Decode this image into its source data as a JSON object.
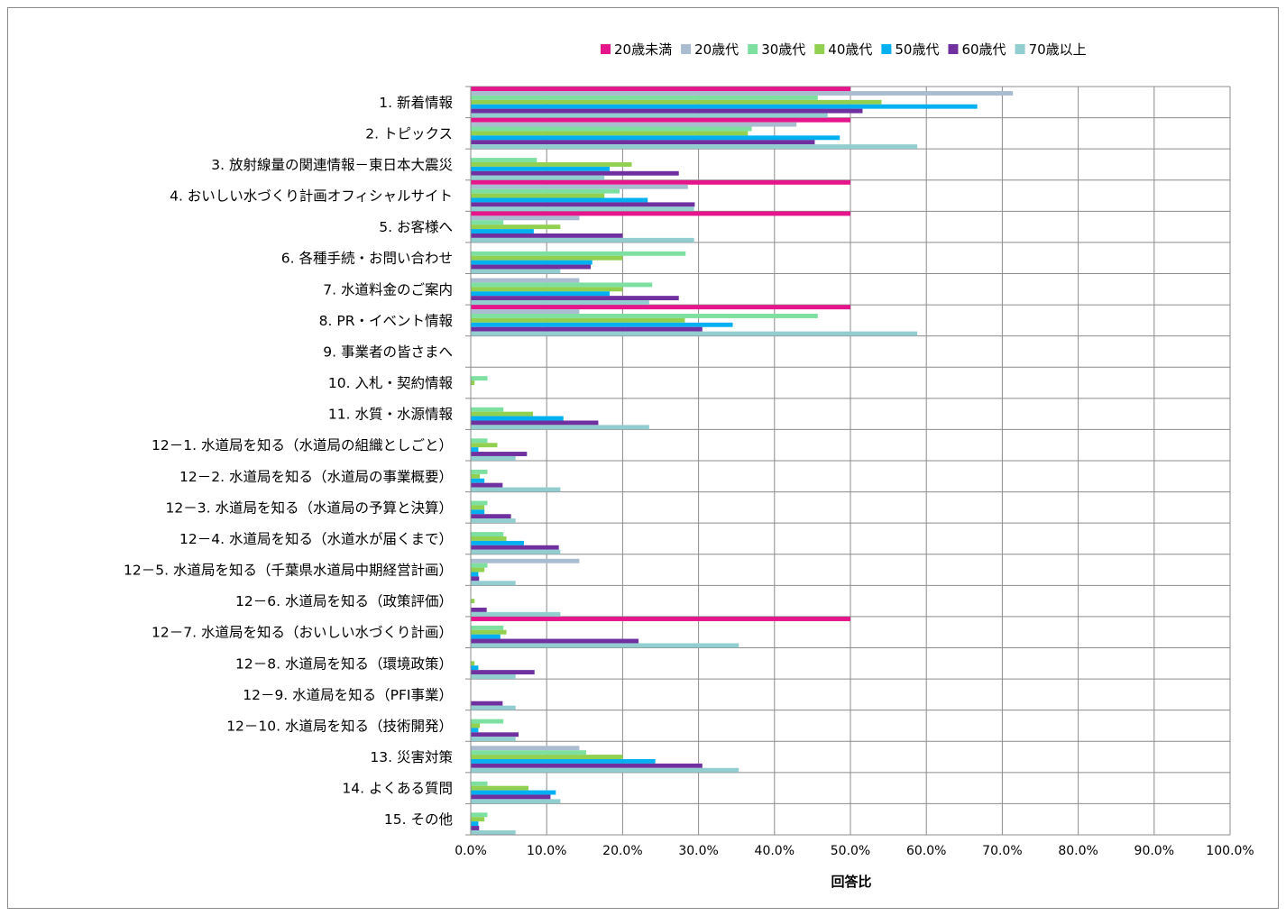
{
  "chart_data": {
    "type": "bar",
    "orientation": "horizontal",
    "xlabel": "回答比",
    "xlim": [
      0,
      100
    ],
    "x_ticks": [
      "0.0%",
      "10.0%",
      "20.0%",
      "30.0%",
      "40.0%",
      "50.0%",
      "60.0%",
      "70.0%",
      "80.0%",
      "90.0%",
      "100.0%"
    ],
    "grid": true,
    "legend_position": "top-right",
    "categories": [
      "1. 新着情報",
      "2. トピックス",
      "3. 放射線量の関連情報－東日本大震災",
      "4. おいしい水づくり計画オフィシャルサイト",
      "5. お客様へ",
      "6. 各種手続・お問い合わせ",
      "7. 水道料金のご案内",
      "8. PR・イベント情報",
      "9. 事業者の皆さまへ",
      "10. 入札・契約情報",
      "11. 水質・水源情報",
      "12－1. 水道局を知る（水道局の組織としごと）",
      "12－2. 水道局を知る（水道局の事業概要）",
      "12－3. 水道局を知る（水道局の予算と決算）",
      "12－4. 水道局を知る（水道水が届くまで）",
      "12－5. 水道局を知る（千葉県水道局中期経営計画）",
      "12－6. 水道局を知る（政策評価）",
      "12－7. 水道局を知る（おいしい水づくり計画）",
      "12－8. 水道局を知る（環境政策）",
      "12－9. 水道局を知る（PFI事業）",
      "12－10. 水道局を知る（技術開発）",
      "13. 災害対策",
      "14. よくある質問",
      "15. その他"
    ],
    "series": [
      {
        "name": "20歳未満",
        "color": "#e6158c",
        "values": [
          50,
          50,
          0,
          50,
          50,
          0,
          0,
          50,
          0,
          0,
          0,
          0,
          0,
          0,
          0,
          0,
          0,
          50,
          0,
          0,
          0,
          0,
          0,
          0
        ]
      },
      {
        "name": "20歳代",
        "color": "#a9bcd0",
        "values": [
          71.4,
          42.9,
          0,
          28.6,
          14.3,
          0,
          14.3,
          14.3,
          0,
          0,
          0,
          0,
          0,
          0,
          0,
          14.3,
          0,
          0,
          0,
          0,
          0,
          14.3,
          0,
          0
        ]
      },
      {
        "name": "30歳代",
        "color": "#7ee0a0",
        "values": [
          45.7,
          37,
          8.7,
          19.6,
          4.3,
          28.3,
          23.9,
          45.7,
          0,
          2.2,
          4.3,
          2.2,
          2.2,
          2.2,
          4.3,
          2.2,
          0,
          4.3,
          0,
          0,
          4.3,
          15.2,
          2.2,
          2.2
        ]
      },
      {
        "name": "40歳代",
        "color": "#92d050",
        "values": [
          54.1,
          36.5,
          21.2,
          17.6,
          11.8,
          20,
          20,
          28.2,
          0,
          0.5,
          8.2,
          3.5,
          1.2,
          1.8,
          4.7,
          1.8,
          0.5,
          4.7,
          0.5,
          0,
          1.2,
          20,
          7.6,
          1.8
        ]
      },
      {
        "name": "50歳代",
        "color": "#00b0f0",
        "values": [
          66.7,
          48.6,
          18.3,
          23.3,
          8.3,
          16,
          18.3,
          34.5,
          0,
          0,
          12.2,
          1,
          1.8,
          1.8,
          7,
          1,
          0,
          3.9,
          1,
          0,
          1,
          24.3,
          11.2,
          1
        ]
      },
      {
        "name": "60歳代",
        "color": "#7030a0",
        "values": [
          51.6,
          45.3,
          27.4,
          29.5,
          20,
          15.8,
          27.4,
          30.5,
          0,
          0,
          16.8,
          7.4,
          4.2,
          5.3,
          11.6,
          1.1,
          2.1,
          22.1,
          8.4,
          4.2,
          6.3,
          30.5,
          10.5,
          1.1
        ]
      },
      {
        "name": "70歳以上",
        "color": "#92cdd0",
        "values": [
          47,
          58.8,
          17.6,
          29.4,
          29.4,
          11.8,
          23.5,
          58.8,
          0,
          0,
          23.5,
          5.9,
          11.8,
          5.9,
          11.8,
          5.9,
          11.8,
          35.3,
          5.9,
          5.9,
          5.9,
          35.3,
          11.8,
          5.9
        ]
      }
    ]
  }
}
